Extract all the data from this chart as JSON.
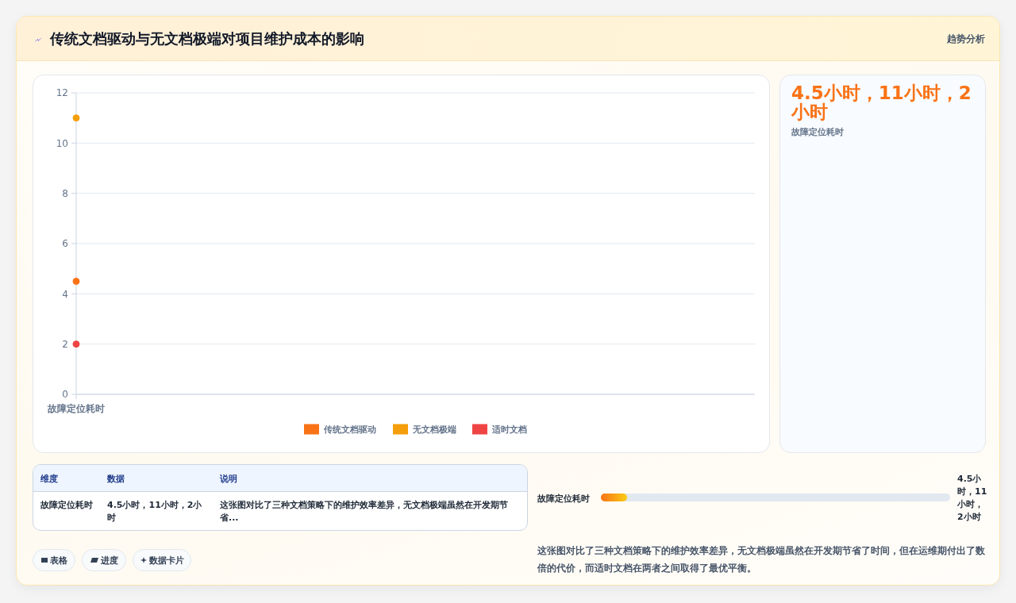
{
  "chart_data": {
    "type": "line",
    "title": "传统文档驱动与无文档极端对项目维护成本的影响",
    "categories": [
      "故障定位耗时"
    ],
    "series": [
      {
        "name": "传统文档驱动",
        "color": "#f97316",
        "values": [
          4.5
        ]
      },
      {
        "name": "无文档极端",
        "color": "#f59e0b",
        "values": [
          11
        ]
      },
      {
        "name": "适时文档",
        "color": "#ef4444",
        "values": [
          2
        ]
      }
    ],
    "ylim": [
      0,
      12
    ],
    "yticks": [
      0,
      2,
      4,
      6,
      8,
      10,
      12
    ],
    "grid": "y",
    "legend": "bottom",
    "marker": "circle",
    "annotations": [
      "趋势分析",
      "4.5小时，11小时，2小时",
      "故障定位耗时",
      "维度",
      "数据",
      "说明",
      "故障定位耗时",
      "4.5小时，11小时，2小时",
      "这张图对比了三种文档策略下的维护效率差异，无文档极端虽然在开发期节省...",
      "表格",
      "进度",
      "数据卡片",
      "故障定位耗时",
      "4.5小时，11小时，2小时",
      "这张图对比了三种文档策略下的维护效率差异，无文档极端虽然在开发期节省了时间，但在运维期付出了数倍的代价，而适时文档在两者之间取得了最优平衡。"
    ]
  }
}
